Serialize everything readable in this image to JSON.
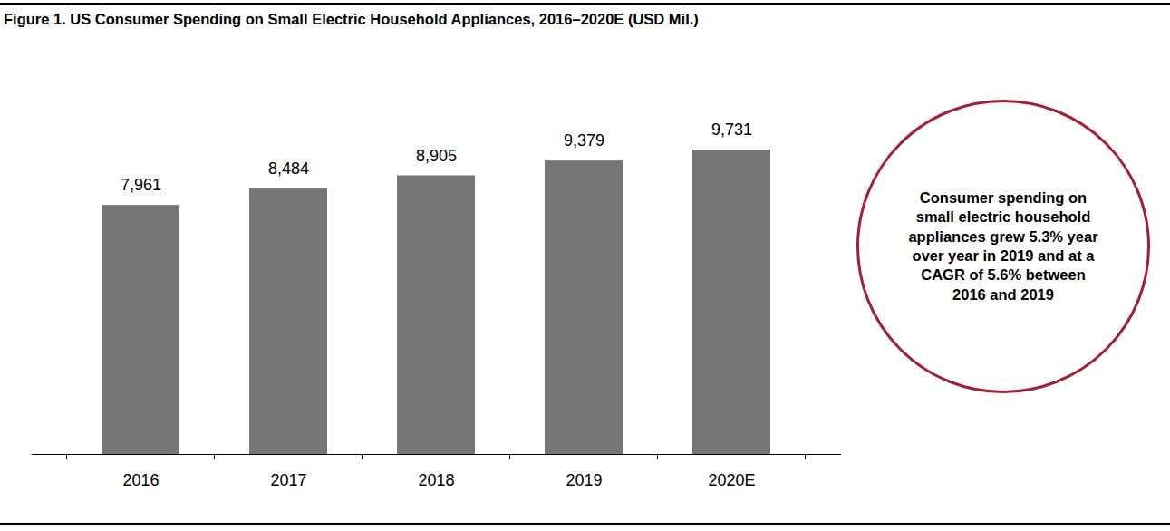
{
  "chart_data": {
    "type": "bar",
    "title": "Figure 1. US Consumer Spending on Small Electric Household Appliances, 2016–2020E (USD Mil.)",
    "categories": [
      "2016",
      "2017",
      "2018",
      "2019",
      "2020E"
    ],
    "values": [
      7961,
      8484,
      8905,
      9379,
      9731
    ],
    "value_labels": [
      "7,961",
      "8,484",
      "8,905",
      "9,379",
      "9,731"
    ],
    "color": "#767676",
    "data_labels": true,
    "tick_labels": "x",
    "annotation": "Consumer spending on small electric household appliances grew 5.3% year over year in 2019 and at a CAGR of 5.6% between 2016 and 2019"
  }
}
